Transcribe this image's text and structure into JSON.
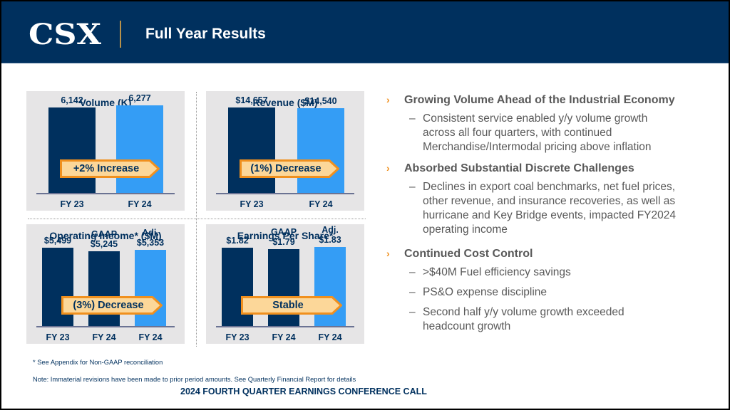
{
  "header": {
    "logo": "CSX",
    "title": "Full Year Results"
  },
  "colors": {
    "navy": "#00305e",
    "blue": "#349df5",
    "orange": "#f0901e",
    "arrow_fill": "#fcd799",
    "panel_bg": "#e6e5e6"
  },
  "chart_data": [
    {
      "type": "bar",
      "title": "Volume (K)",
      "categories": [
        "FY 23",
        "FY 24"
      ],
      "values": [
        6142,
        6277
      ],
      "value_labels": [
        "6,142",
        "6,277"
      ],
      "series_headers": [
        "",
        ""
      ],
      "annotation": "+2% Increase",
      "ylim": [
        0,
        7000
      ]
    },
    {
      "type": "bar",
      "title": "Revenue ($M)",
      "categories": [
        "FY 23",
        "FY 24"
      ],
      "values": [
        14657,
        14540
      ],
      "value_labels": [
        "$14,657",
        "$14,540"
      ],
      "series_headers": [
        "",
        ""
      ],
      "annotation": "(1%) Decrease",
      "ylim": [
        0,
        16700
      ]
    },
    {
      "type": "bar",
      "title": "Operating Income* ($M)",
      "categories": [
        "FY 23",
        "FY 24",
        "FY 24"
      ],
      "values": [
        5499,
        5245,
        5353
      ],
      "value_labels": [
        "$5,499",
        "$5,245",
        "$5,353"
      ],
      "series_headers": [
        "",
        "GAAP",
        "Adj."
      ],
      "annotation": "(3%) Decrease",
      "ylim": [
        0,
        6500
      ]
    },
    {
      "type": "bar",
      "title": "Earnings Per Share*",
      "categories": [
        "FY 23",
        "FY 24",
        "FY 24"
      ],
      "values": [
        1.82,
        1.79,
        1.83
      ],
      "value_labels": [
        "$1.82",
        "$1.79",
        "$1.83"
      ],
      "series_headers": [
        "",
        "GAAP",
        "Adj."
      ],
      "annotation": "Stable",
      "ylim": [
        0,
        2.15
      ]
    }
  ],
  "bullets": [
    {
      "heading": "Growing Volume Ahead of the Industrial Economy",
      "subs": [
        [
          "Consistent service enabled y/y volume growth",
          "across all four quarters, with continued",
          "Merchandise/Intermodal pricing above inflation"
        ]
      ]
    },
    {
      "heading": "Absorbed Substantial Discrete Challenges",
      "subs": [
        [
          "Declines in export coal benchmarks, net fuel prices,",
          "other revenue, and insurance recoveries, as well as",
          "hurricane and Key Bridge events, impacted FY2024",
          "operating income"
        ]
      ]
    },
    {
      "heading": "Continued Cost Control",
      "subs": [
        [
          ">$40M Fuel efficiency savings"
        ],
        [
          "PS&O expense discipline"
        ],
        [
          "Second half y/y volume growth exceeded",
          "headcount growth"
        ]
      ]
    }
  ],
  "bullet_marker": "›",
  "sub_marker": "–",
  "footer": {
    "footnote": "* See Appendix for Non-GAAP reconciliation",
    "note": "Note: Immaterial revisions have been made to prior period amounts. See Quarterly Financial Report for details",
    "event": "2024 FOURTH QUARTER EARNINGS CONFERENCE CALL"
  }
}
